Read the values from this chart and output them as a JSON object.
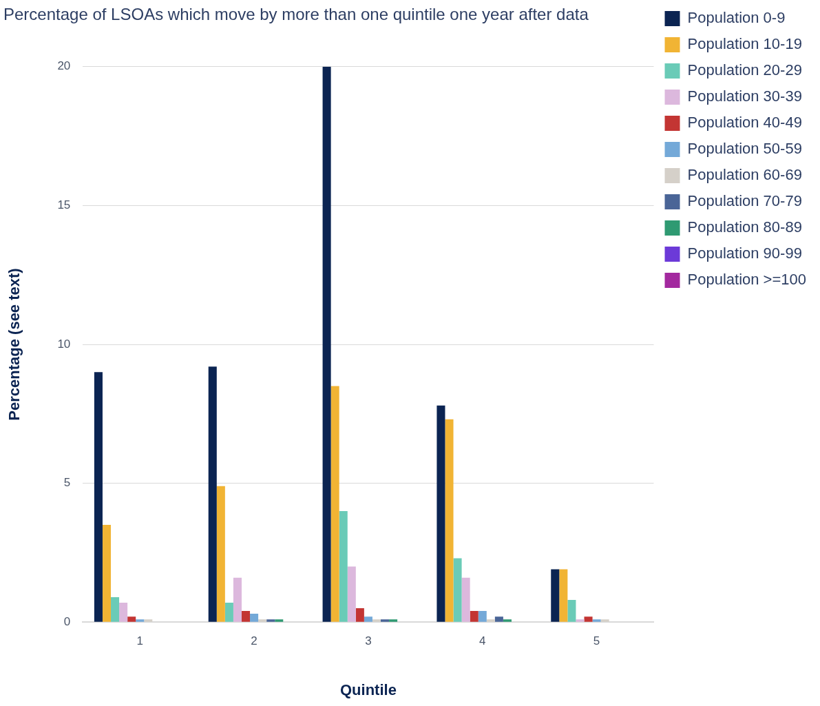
{
  "chart_data": {
    "type": "bar",
    "title": "Percentage of LSOAs which move by more than one quintile one year after data",
    "xlabel": "Quintile",
    "ylabel": "Percentage (see text)",
    "categories": [
      "1",
      "2",
      "3",
      "4",
      "5"
    ],
    "series": [
      {
        "name": "Population 0-9",
        "color": "#0b2452",
        "values": [
          9.0,
          9.2,
          20.0,
          7.8,
          1.9
        ]
      },
      {
        "name": "Population 10-19",
        "color": "#f1b434",
        "values": [
          3.5,
          4.9,
          8.5,
          7.3,
          1.9
        ]
      },
      {
        "name": "Population 20-29",
        "color": "#6acbb7",
        "values": [
          0.9,
          0.7,
          4.0,
          2.3,
          0.8
        ]
      },
      {
        "name": "Population 30-39",
        "color": "#dcb8dd",
        "values": [
          0.7,
          1.6,
          2.0,
          1.6,
          0.1
        ]
      },
      {
        "name": "Population 40-49",
        "color": "#c33533",
        "values": [
          0.2,
          0.4,
          0.5,
          0.4,
          0.2
        ]
      },
      {
        "name": "Population 50-59",
        "color": "#74a9d8",
        "values": [
          0.1,
          0.3,
          0.2,
          0.4,
          0.1
        ]
      },
      {
        "name": "Population 60-69",
        "color": "#d5d0c9",
        "values": [
          0.1,
          0.1,
          0.1,
          0.1,
          0.1
        ]
      },
      {
        "name": "Population 70-79",
        "color": "#4a6597",
        "values": [
          0,
          0.1,
          0.1,
          0.2,
          0
        ]
      },
      {
        "name": "Population 80-89",
        "color": "#2f9a72",
        "values": [
          0,
          0.1,
          0.1,
          0.1,
          0
        ]
      },
      {
        "name": "Population 90-99",
        "color": "#6c3ad8",
        "values": [
          0,
          0,
          0,
          0,
          0
        ]
      },
      {
        "name": "Population >=100",
        "color": "#a3299f",
        "values": [
          0,
          0,
          0,
          0,
          0
        ]
      }
    ],
    "ylim": [
      0,
      20
    ],
    "yticks": [
      0,
      5,
      10,
      15,
      20
    ],
    "grid": "y",
    "legend": "top right"
  }
}
